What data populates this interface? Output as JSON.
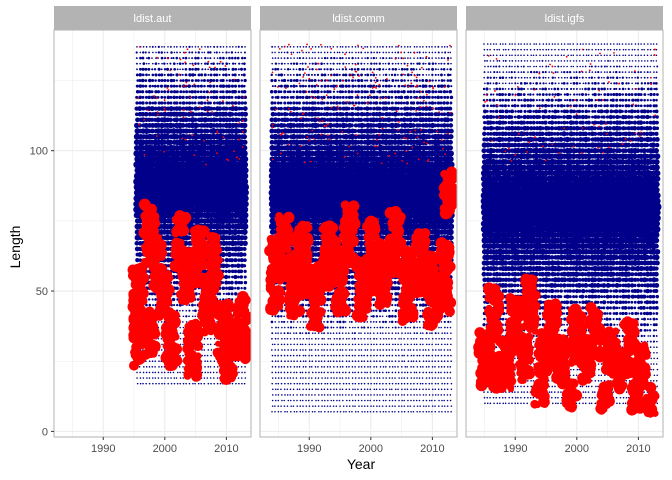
{
  "chart_data": {
    "type": "scatter",
    "xlabel": "Year",
    "ylabel": "Length",
    "xlim": [
      1982,
      2014
    ],
    "ylim": [
      -2,
      143
    ],
    "x_ticks": [
      1990,
      2000,
      2010
    ],
    "x_tick_labels": [
      "1990",
      "2000",
      "2010"
    ],
    "y_ticks": [
      0,
      50,
      100
    ],
    "y_tick_labels": [
      "0",
      "50",
      "100"
    ],
    "grid": true,
    "colors": {
      "observed": "#00008b",
      "model": "#ff0000",
      "strip": "#b3b3b3",
      "grid": "#ebebeb",
      "panel_border": "#b3b3b3"
    },
    "panels": [
      {
        "label": "ldist.aut",
        "year_range": [
          1995.5,
          2013
        ],
        "length_range": [
          17,
          138
        ],
        "red_clusters": [
          {
            "year": 1995.7,
            "length": 49,
            "spread": 6
          },
          {
            "year": 1995.7,
            "length": 33,
            "spread": 6
          },
          {
            "year": 1997.5,
            "length": 70,
            "spread": 7
          },
          {
            "year": 1997.5,
            "length": 35,
            "spread": 5
          },
          {
            "year": 1999,
            "length": 60,
            "spread": 6
          },
          {
            "year": 2000,
            "length": 48,
            "spread": 5
          },
          {
            "year": 2001,
            "length": 32,
            "spread": 6
          },
          {
            "year": 2002.5,
            "length": 68,
            "spread": 6
          },
          {
            "year": 2003.5,
            "length": 54,
            "spread": 6
          },
          {
            "year": 2004.5,
            "length": 29,
            "spread": 6
          },
          {
            "year": 2005.5,
            "length": 62,
            "spread": 6
          },
          {
            "year": 2007,
            "length": 44,
            "spread": 6
          },
          {
            "year": 2008,
            "length": 60,
            "spread": 6
          },
          {
            "year": 2009.5,
            "length": 35,
            "spread": 7
          },
          {
            "year": 2010.5,
            "length": 28,
            "spread": 7
          },
          {
            "year": 2012.5,
            "length": 37,
            "spread": 7
          }
        ]
      },
      {
        "label": "ldist.comm",
        "year_range": [
          1984,
          2013
        ],
        "length_range": [
          7,
          138
        ],
        "red_clusters": [
          {
            "year": 1984.5,
            "length": 56,
            "spread": 8
          },
          {
            "year": 1986,
            "length": 66,
            "spread": 7
          },
          {
            "year": 1987.5,
            "length": 52,
            "spread": 7
          },
          {
            "year": 1989,
            "length": 61,
            "spread": 8
          },
          {
            "year": 1991,
            "length": 48,
            "spread": 7
          },
          {
            "year": 1993,
            "length": 62,
            "spread": 7
          },
          {
            "year": 1995,
            "length": 55,
            "spread": 8
          },
          {
            "year": 1996.5,
            "length": 70,
            "spread": 7
          },
          {
            "year": 1998.5,
            "length": 50,
            "spread": 7
          },
          {
            "year": 2000,
            "length": 62,
            "spread": 8
          },
          {
            "year": 2002,
            "length": 56,
            "spread": 7
          },
          {
            "year": 2004,
            "length": 67,
            "spread": 7
          },
          {
            "year": 2006,
            "length": 52,
            "spread": 8
          },
          {
            "year": 2008,
            "length": 60,
            "spread": 7
          },
          {
            "year": 2010,
            "length": 50,
            "spread": 8
          },
          {
            "year": 2012,
            "length": 55,
            "spread": 8
          },
          {
            "year": 2012.8,
            "length": 85,
            "spread": 5
          }
        ]
      },
      {
        "label": "ldist.igfs",
        "year_range": [
          1985,
          2013
        ],
        "length_range": [
          10,
          138
        ],
        "red_clusters": [
          {
            "year": 1985,
            "length": 26,
            "spread": 6
          },
          {
            "year": 1986.5,
            "length": 42,
            "spread": 6
          },
          {
            "year": 1987,
            "length": 21,
            "spread": 4
          },
          {
            "year": 1988.5,
            "length": 24,
            "spread": 6
          },
          {
            "year": 1990,
            "length": 38,
            "spread": 6
          },
          {
            "year": 1991.5,
            "length": 26,
            "spread": 5
          },
          {
            "year": 1992.5,
            "length": 45,
            "spread": 6
          },
          {
            "year": 1994,
            "length": 14,
            "spread": 3
          },
          {
            "year": 1994.5,
            "length": 28,
            "spread": 5
          },
          {
            "year": 1996,
            "length": 36,
            "spread": 6
          },
          {
            "year": 1997.5,
            "length": 25,
            "spread": 5
          },
          {
            "year": 1999,
            "length": 13,
            "spread": 3
          },
          {
            "year": 2000,
            "length": 34,
            "spread": 6
          },
          {
            "year": 2001.5,
            "length": 26,
            "spread": 5
          },
          {
            "year": 2003,
            "length": 36,
            "spread": 6
          },
          {
            "year": 2004.5,
            "length": 12,
            "spread": 3
          },
          {
            "year": 2005.5,
            "length": 28,
            "spread": 5
          },
          {
            "year": 2007,
            "length": 22,
            "spread": 5
          },
          {
            "year": 2008.5,
            "length": 30,
            "spread": 6
          },
          {
            "year": 2009.5,
            "length": 12,
            "spread": 3
          },
          {
            "year": 2010.5,
            "length": 23,
            "spread": 5
          },
          {
            "year": 2012,
            "length": 11,
            "spread": 3
          }
        ]
      }
    ]
  }
}
